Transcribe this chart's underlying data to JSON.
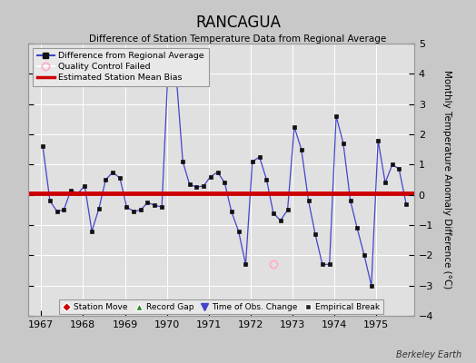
{
  "title": "RANCAGUA",
  "subtitle": "Difference of Station Temperature Data from Regional Average",
  "ylabel": "Monthly Temperature Anomaly Difference (°C)",
  "xlabel": "",
  "ylim": [
    -4,
    5
  ],
  "xlim": [
    1966.7,
    1975.9
  ],
  "xticks": [
    1967,
    1968,
    1969,
    1970,
    1971,
    1972,
    1973,
    1974,
    1975
  ],
  "yticks": [
    -4,
    -3,
    -2,
    -1,
    0,
    1,
    2,
    3,
    4,
    5
  ],
  "mean_bias": 0.05,
  "fig_bg_color": "#c8c8c8",
  "plot_bg_color": "#e0e0e0",
  "line_color": "#4444cc",
  "marker_color": "#111111",
  "bias_color": "#cc0000",
  "grid_color": "#ffffff",
  "berkeley_earth_text": "Berkeley Earth",
  "times": [
    1967.04,
    1967.21,
    1967.38,
    1967.54,
    1967.71,
    1967.88,
    1968.04,
    1968.21,
    1968.38,
    1968.54,
    1968.71,
    1968.88,
    1969.04,
    1969.21,
    1969.38,
    1969.54,
    1969.71,
    1969.88,
    1970.04,
    1970.21,
    1970.38,
    1970.54,
    1970.71,
    1970.88,
    1971.04,
    1971.21,
    1971.38,
    1971.54,
    1971.71,
    1971.88,
    1972.04,
    1972.21,
    1972.38,
    1972.54,
    1972.71,
    1972.88,
    1973.04,
    1973.21,
    1973.38,
    1973.54,
    1973.71,
    1973.88,
    1974.04,
    1974.21,
    1974.38,
    1974.54,
    1974.71,
    1974.88,
    1975.04,
    1975.21,
    1975.38,
    1975.54,
    1975.71
  ],
  "values": [
    1.6,
    -0.2,
    -0.55,
    -0.5,
    0.15,
    0.05,
    0.3,
    -1.2,
    -0.45,
    0.5,
    0.75,
    0.55,
    -0.4,
    -0.55,
    -0.5,
    -0.25,
    -0.35,
    -0.4,
    4.5,
    4.2,
    1.1,
    0.35,
    0.25,
    0.3,
    0.6,
    0.75,
    0.4,
    -0.55,
    -1.2,
    -2.3,
    1.1,
    1.25,
    0.5,
    -0.6,
    -0.85,
    -0.5,
    2.25,
    1.5,
    -0.2,
    -1.3,
    -2.3,
    -2.3,
    2.6,
    1.7,
    -0.2,
    -1.1,
    -2.0,
    -3.0,
    1.8,
    0.4,
    1.0,
    0.85,
    -0.3
  ],
  "qc_failed_times": [
    1972.54
  ],
  "qc_failed_values": [
    -2.3
  ]
}
